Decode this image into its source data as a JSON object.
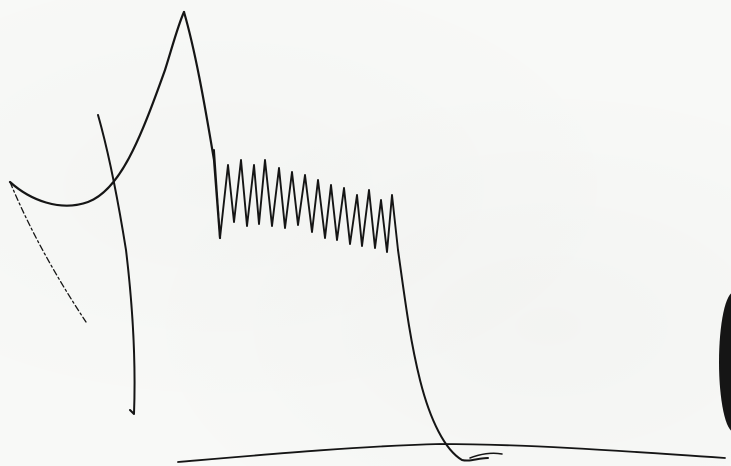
{
  "ink_color": "#151515",
  "paper_color": "#f8f9f7",
  "content_type": "handwritten-signature"
}
